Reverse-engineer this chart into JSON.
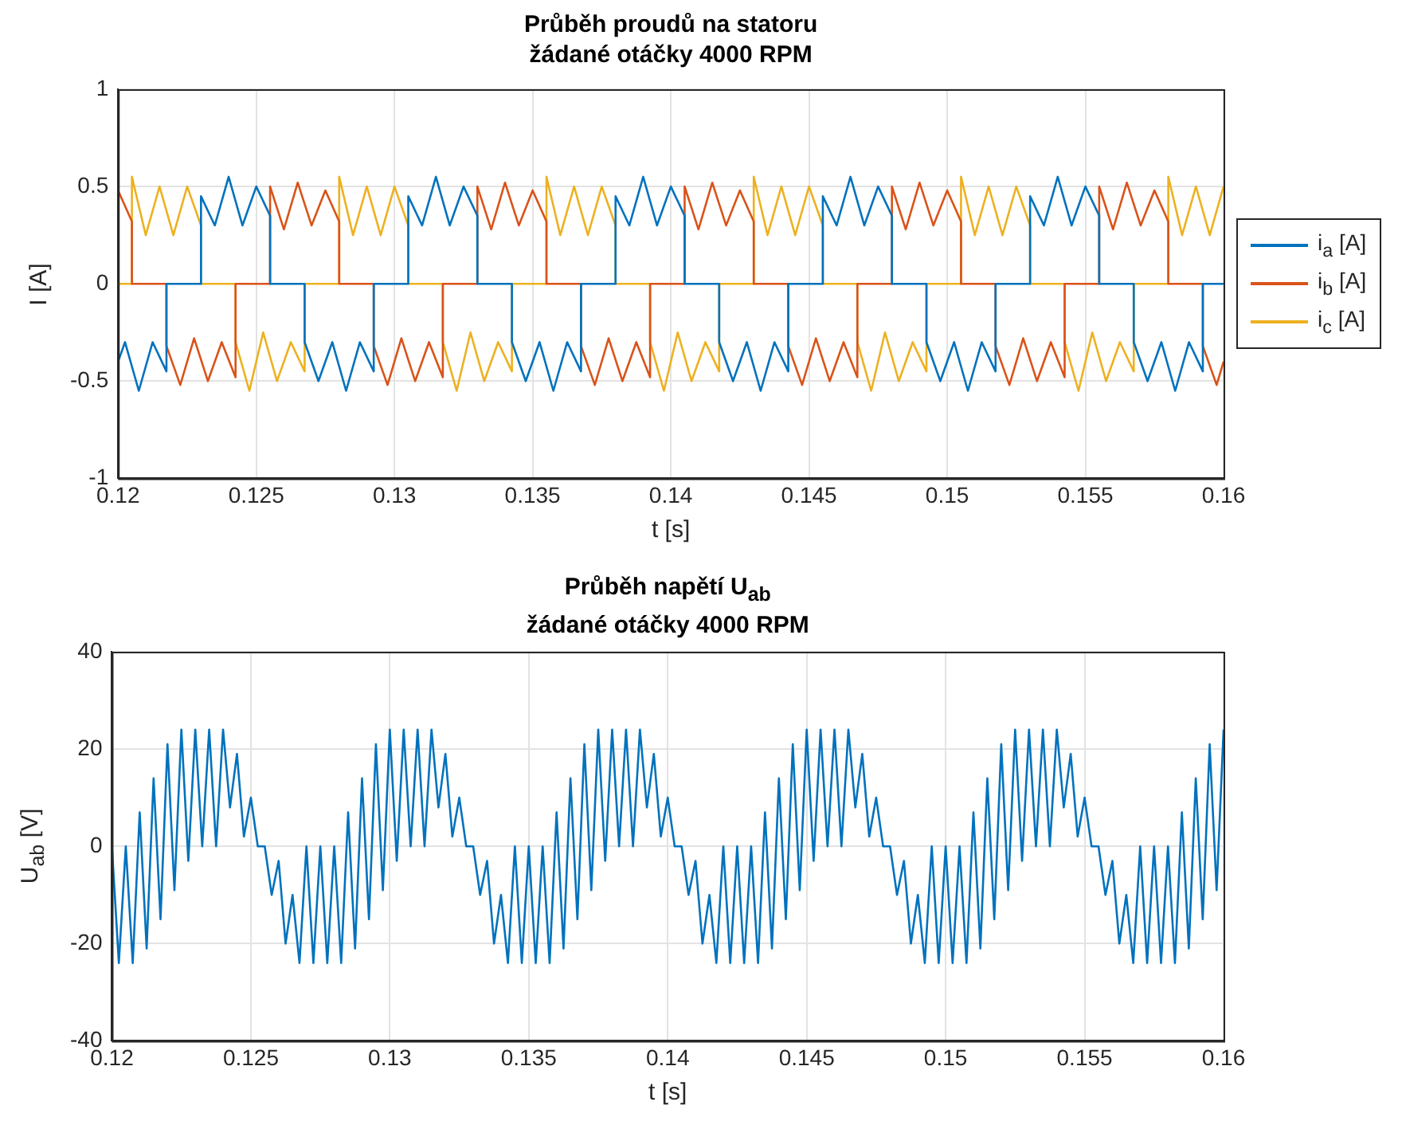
{
  "chart_data": [
    {
      "type": "line",
      "title": "Průběh proudů na statoru",
      "subtitle": "žádané otáčky 4000 RPM",
      "xlabel": "t [s]",
      "ylabel": "I [A]",
      "xlim": [
        0.12,
        0.16
      ],
      "xticks": [
        0.12,
        0.125,
        0.13,
        0.135,
        0.14,
        0.145,
        0.15,
        0.155,
        0.16
      ],
      "ylim": [
        -1,
        1
      ],
      "yticks": [
        -1,
        -0.5,
        0,
        0.5,
        1
      ],
      "grid": true,
      "legend": "right",
      "marker": "none",
      "series": [
        {
          "name": "i$_{a}$ [A]",
          "color": "#0072bd",
          "x": [
            0.12,
            0.12025,
            0.12075,
            0.12125,
            0.12175,
            0.12175,
            0.123,
            0.123,
            0.1235,
            0.124,
            0.1245,
            0.125,
            0.1255,
            0.1255,
            0.12675,
            0.12675,
            0.12725,
            0.12775,
            0.12825,
            0.12875,
            0.12925,
            0.12925,
            0.1305,
            0.1305,
            0.131,
            0.1315,
            0.132,
            0.1325,
            0.133,
            0.133,
            0.13425,
            0.13425,
            0.13475,
            0.13525,
            0.13575,
            0.13625,
            0.13675,
            0.13675,
            0.138,
            0.138,
            0.1385,
            0.139,
            0.1395,
            0.14,
            0.1405,
            0.1405,
            0.14175,
            0.14175,
            0.14225,
            0.14275,
            0.14325,
            0.14375,
            0.14425,
            0.14425,
            0.1455,
            0.1455,
            0.146,
            0.1465,
            0.147,
            0.1475,
            0.148,
            0.148,
            0.14925,
            0.14925,
            0.14975,
            0.15025,
            0.15075,
            0.15125,
            0.15175,
            0.15175,
            0.153,
            0.153,
            0.1535,
            0.154,
            0.1545,
            0.155,
            0.1555,
            0.1555,
            0.15675,
            0.15675,
            0.15725,
            0.15775,
            0.15825,
            0.15875,
            0.15925,
            0.15925,
            0.16
          ],
          "values": [
            -0.4,
            -0.3,
            -0.55,
            -0.3,
            -0.45,
            0,
            0,
            0.45,
            0.3,
            0.55,
            0.3,
            0.5,
            0.35,
            0,
            0,
            -0.3,
            -0.5,
            -0.3,
            -0.55,
            -0.3,
            -0.45,
            0,
            0,
            0.45,
            0.3,
            0.55,
            0.3,
            0.5,
            0.35,
            0,
            0,
            -0.3,
            -0.5,
            -0.3,
            -0.55,
            -0.3,
            -0.45,
            0,
            0,
            0.45,
            0.3,
            0.55,
            0.3,
            0.5,
            0.35,
            0,
            0,
            -0.3,
            -0.5,
            -0.3,
            -0.55,
            -0.3,
            -0.45,
            0,
            0,
            0.45,
            0.3,
            0.55,
            0.3,
            0.5,
            0.35,
            0,
            0,
            -0.3,
            -0.5,
            -0.3,
            -0.55,
            -0.3,
            -0.45,
            0,
            0,
            0.45,
            0.3,
            0.55,
            0.3,
            0.5,
            0.35,
            0,
            0,
            -0.3,
            -0.5,
            -0.3,
            -0.55,
            -0.3,
            -0.45,
            0,
            0
          ]
        },
        {
          "name": "i$_{b}$ [A]",
          "color": "#d95319",
          "x": [
            0.12,
            0.1205,
            0.1205,
            0.12175,
            0.12175,
            0.12225,
            0.12275,
            0.12325,
            0.12375,
            0.12425,
            0.12425,
            0.1255,
            0.1255,
            0.126,
            0.1265,
            0.127,
            0.1275,
            0.128,
            0.128,
            0.12925,
            0.12925,
            0.12975,
            0.13025,
            0.13075,
            0.13125,
            0.13175,
            0.13175,
            0.133,
            0.133,
            0.1335,
            0.134,
            0.1345,
            0.135,
            0.1355,
            0.1355,
            0.13675,
            0.13675,
            0.13725,
            0.13775,
            0.13825,
            0.13875,
            0.13925,
            0.13925,
            0.1405,
            0.1405,
            0.141,
            0.1415,
            0.142,
            0.1425,
            0.143,
            0.143,
            0.14425,
            0.14425,
            0.14475,
            0.14525,
            0.14575,
            0.14625,
            0.14675,
            0.14675,
            0.148,
            0.148,
            0.1485,
            0.149,
            0.1495,
            0.15,
            0.1505,
            0.1505,
            0.15175,
            0.15175,
            0.15225,
            0.15275,
            0.15325,
            0.15375,
            0.15425,
            0.15425,
            0.1555,
            0.1555,
            0.156,
            0.1565,
            0.157,
            0.1575,
            0.158,
            0.158,
            0.15925,
            0.15925,
            0.15975,
            0.16
          ],
          "values": [
            0.48,
            0.32,
            0,
            0,
            -0.32,
            -0.52,
            -0.28,
            -0.5,
            -0.3,
            -0.48,
            0,
            0,
            0.5,
            0.28,
            0.52,
            0.3,
            0.48,
            0.32,
            0,
            0,
            -0.32,
            -0.52,
            -0.28,
            -0.5,
            -0.3,
            -0.48,
            0,
            0,
            0.5,
            0.28,
            0.52,
            0.3,
            0.48,
            0.32,
            0,
            0,
            -0.32,
            -0.52,
            -0.28,
            -0.5,
            -0.3,
            -0.48,
            0,
            0,
            0.5,
            0.28,
            0.52,
            0.3,
            0.48,
            0.32,
            0,
            0,
            -0.32,
            -0.52,
            -0.28,
            -0.5,
            -0.3,
            -0.48,
            0,
            0,
            0.5,
            0.28,
            0.52,
            0.3,
            0.48,
            0.32,
            0,
            0,
            -0.32,
            -0.52,
            -0.28,
            -0.5,
            -0.3,
            -0.48,
            0,
            0,
            0.5,
            0.28,
            0.52,
            0.3,
            0.48,
            0.32,
            0,
            0,
            -0.32,
            -0.52,
            -0.4
          ]
        },
        {
          "name": "i$_{c}$ [A]",
          "color": "#edb120",
          "x": [
            0.12,
            0.1205,
            0.1205,
            0.121,
            0.1215,
            0.122,
            0.1225,
            0.123,
            0.123,
            0.12425,
            0.12425,
            0.12475,
            0.12525,
            0.12575,
            0.12625,
            0.12675,
            0.12675,
            0.128,
            0.128,
            0.1285,
            0.129,
            0.1295,
            0.13,
            0.1305,
            0.1305,
            0.13175,
            0.13175,
            0.13225,
            0.13275,
            0.13325,
            0.13375,
            0.13425,
            0.13425,
            0.1355,
            0.1355,
            0.136,
            0.1365,
            0.137,
            0.1375,
            0.138,
            0.138,
            0.13925,
            0.13925,
            0.13975,
            0.14025,
            0.14075,
            0.14125,
            0.14175,
            0.14175,
            0.143,
            0.143,
            0.1435,
            0.144,
            0.1445,
            0.145,
            0.1455,
            0.1455,
            0.14675,
            0.14675,
            0.14725,
            0.14775,
            0.14825,
            0.14875,
            0.14925,
            0.14925,
            0.1505,
            0.1505,
            0.151,
            0.1515,
            0.152,
            0.1525,
            0.153,
            0.153,
            0.15425,
            0.15425,
            0.15475,
            0.15525,
            0.15575,
            0.15625,
            0.15675,
            0.15675,
            0.158,
            0.158,
            0.1585,
            0.159,
            0.1595,
            0.16
          ],
          "values": [
            0,
            0,
            0.55,
            0.25,
            0.5,
            0.25,
            0.5,
            0.3,
            0,
            0,
            -0.3,
            -0.55,
            -0.25,
            -0.5,
            -0.3,
            -0.45,
            0,
            0,
            0.55,
            0.25,
            0.5,
            0.25,
            0.5,
            0.3,
            0,
            0,
            -0.3,
            -0.55,
            -0.25,
            -0.5,
            -0.3,
            -0.45,
            0,
            0,
            0.55,
            0.25,
            0.5,
            0.25,
            0.5,
            0.3,
            0,
            0,
            -0.3,
            -0.55,
            -0.25,
            -0.5,
            -0.3,
            -0.45,
            0,
            0,
            0.55,
            0.25,
            0.5,
            0.25,
            0.5,
            0.3,
            0,
            0,
            -0.3,
            -0.55,
            -0.25,
            -0.5,
            -0.3,
            -0.45,
            0,
            0,
            0.55,
            0.25,
            0.5,
            0.25,
            0.5,
            0.3,
            0,
            0,
            -0.3,
            -0.55,
            -0.25,
            -0.5,
            -0.3,
            -0.45,
            0,
            0,
            0.55,
            0.25,
            0.5,
            0.25,
            0.5
          ]
        }
      ]
    },
    {
      "type": "line",
      "title": "Průběh napětí U$_{ab}$",
      "subtitle": "žádané otáčky 4000 RPM",
      "xlabel": "t [s]",
      "ylabel": "U$_{ab}$ [V]",
      "xlim": [
        0.12,
        0.16
      ],
      "xticks": [
        0.12,
        0.125,
        0.13,
        0.135,
        0.14,
        0.145,
        0.15,
        0.155,
        0.16
      ],
      "ylim": [
        -40,
        40
      ],
      "yticks": [
        -40,
        -20,
        0,
        20,
        40
      ],
      "grid": true,
      "marker": "none",
      "series": [
        {
          "color": "#0072bd",
          "x": [
            0.12,
            0.12025,
            0.1205,
            0.12075,
            0.121,
            0.12125,
            0.1215,
            0.12175,
            0.122,
            0.12225,
            0.1225,
            0.12275,
            0.123,
            0.12325,
            0.1235,
            0.12375,
            0.124,
            0.12425,
            0.1245,
            0.12475,
            0.125,
            0.12525,
            0.1255,
            0.12575,
            0.126,
            0.12625,
            0.1265,
            0.12675,
            0.127,
            0.12725,
            0.1275,
            0.12775,
            0.128,
            0.12825,
            0.1285,
            0.12875,
            0.129,
            0.12925,
            0.1295,
            0.12975,
            0.13,
            0.13025,
            0.1305,
            0.13075,
            0.131,
            0.13125,
            0.1315,
            0.13175,
            0.132,
            0.13225,
            0.1325,
            0.13275,
            0.133,
            0.13325,
            0.1335,
            0.13375,
            0.134,
            0.13425,
            0.1345,
            0.13475,
            0.135,
            0.13525,
            0.1355,
            0.13575,
            0.136,
            0.13625,
            0.1365,
            0.13675,
            0.137,
            0.13725,
            0.1375,
            0.13775,
            0.138,
            0.13825,
            0.1385,
            0.13875,
            0.139,
            0.13925,
            0.1395,
            0.13975,
            0.14,
            0.14025,
            0.1405,
            0.14075,
            0.141,
            0.14125,
            0.1415,
            0.14175,
            0.142,
            0.14225,
            0.1425,
            0.14275,
            0.143,
            0.14325,
            0.1435,
            0.14375,
            0.144,
            0.14425,
            0.1445,
            0.14475,
            0.145,
            0.14525,
            0.1455,
            0.14575,
            0.146,
            0.14625,
            0.1465,
            0.14675,
            0.147,
            0.14725,
            0.1475,
            0.14775,
            0.148,
            0.14825,
            0.1485,
            0.14875,
            0.149,
            0.14925,
            0.1495,
            0.14975,
            0.15,
            0.15025,
            0.1505,
            0.15075,
            0.151,
            0.15125,
            0.1515,
            0.15175,
            0.152,
            0.15225,
            0.1525,
            0.15275,
            0.153,
            0.15325,
            0.1535,
            0.15375,
            0.154,
            0.15425,
            0.1545,
            0.15475,
            0.155,
            0.15525,
            0.1555,
            0.15575,
            0.156,
            0.15625,
            0.1565,
            0.15675,
            0.157,
            0.15725,
            0.1575,
            0.15775,
            0.158,
            0.15825,
            0.1585,
            0.15875,
            0.159,
            0.15925,
            0.1595,
            0.15975,
            0.16
          ],
          "values": [
            0,
            -24,
            0,
            -24,
            7,
            -21,
            14,
            -15,
            21,
            -9,
            24,
            -3,
            24,
            0,
            24,
            0,
            24,
            8,
            19,
            2,
            10,
            0,
            0,
            -10,
            -3,
            -20,
            -10,
            -24,
            0,
            -24,
            0,
            -24,
            0,
            -24,
            7,
            -21,
            14,
            -15,
            21,
            -9,
            24,
            -3,
            24,
            0,
            24,
            0,
            24,
            8,
            19,
            2,
            10,
            0,
            0,
            -10,
            -3,
            -20,
            -10,
            -24,
            0,
            -24,
            0,
            -24,
            0,
            -24,
            7,
            -21,
            14,
            -15,
            21,
            -9,
            24,
            -3,
            24,
            0,
            24,
            0,
            24,
            8,
            19,
            2,
            10,
            0,
            0,
            -10,
            -3,
            -20,
            -10,
            -24,
            0,
            -24,
            0,
            -24,
            0,
            -24,
            7,
            -21,
            14,
            -15,
            21,
            -9,
            24,
            -3,
            24,
            0,
            24,
            0,
            24,
            8,
            19,
            2,
            10,
            0,
            0,
            -10,
            -3,
            -20,
            -10,
            -24,
            0,
            -24,
            0,
            -24,
            0,
            -24,
            7,
            -21,
            14,
            -15,
            21,
            -9,
            24,
            -3,
            24,
            0,
            24,
            0,
            24,
            8,
            19,
            2,
            10,
            0,
            0,
            -10,
            -3,
            -20,
            -10,
            -24,
            0,
            -24,
            0,
            -24,
            0,
            -24,
            7,
            -21,
            14,
            -15,
            21,
            -9,
            24
          ]
        }
      ]
    }
  ]
}
